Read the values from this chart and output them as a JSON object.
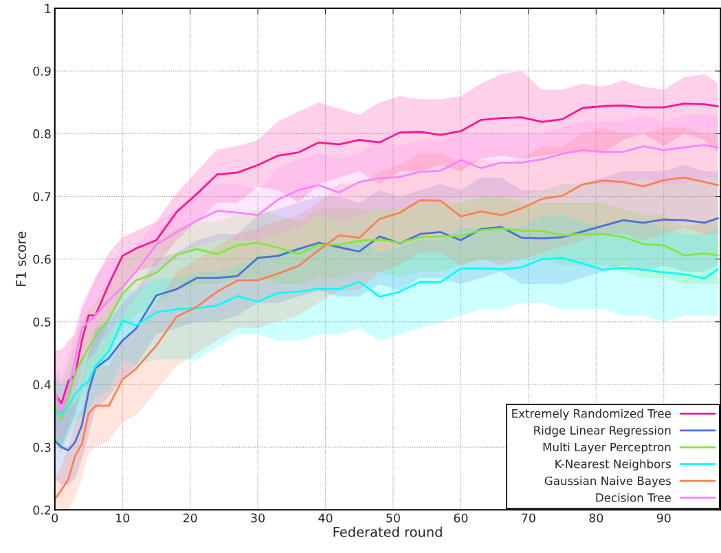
{
  "chart_data": {
    "type": "line",
    "xlabel": "Federated round",
    "ylabel": "F1 score",
    "x": [
      0,
      1,
      2,
      3,
      4,
      5,
      6,
      8,
      10,
      12,
      15,
      18,
      21,
      24,
      27,
      30,
      33,
      36,
      39,
      42,
      45,
      48,
      51,
      54,
      57,
      60,
      63,
      66,
      69,
      72,
      75,
      78,
      81,
      84,
      87,
      90,
      93,
      96,
      98
    ],
    "xlim": [
      0,
      98.4
    ],
    "ylim": [
      0.2,
      1
    ],
    "xticks": [
      0,
      10,
      20,
      30,
      40,
      50,
      60,
      70,
      80,
      90
    ],
    "yticks": [
      0.2,
      0.3,
      0.4,
      0.5,
      0.6,
      0.7,
      0.8,
      0.9,
      1
    ],
    "grid": true,
    "legend": "bottom right",
    "line_style": "solid",
    "marker": "none",
    "series": [
      {
        "name": "Extremely Randomized Tree",
        "color": "#ff1493",
        "values": [
          0.385,
          0.37,
          0.405,
          0.415,
          0.47,
          0.51,
          0.51,
          0.56,
          0.605,
          0.617,
          0.63,
          0.675,
          0.704,
          0.735,
          0.738,
          0.75,
          0.765,
          0.77,
          0.786,
          0.783,
          0.79,
          0.786,
          0.802,
          0.803,
          0.798,
          0.804,
          0.822,
          0.825,
          0.826,
          0.819,
          0.823,
          0.841,
          0.844,
          0.845,
          0.842,
          0.842,
          0.848,
          0.847,
          0.844
        ],
        "lower": [
          0.31,
          0.3,
          0.33,
          0.35,
          0.4,
          0.44,
          0.45,
          0.5,
          0.55,
          0.58,
          0.59,
          0.63,
          0.66,
          0.69,
          0.69,
          0.715,
          0.71,
          0.69,
          0.72,
          0.73,
          0.74,
          0.72,
          0.74,
          0.74,
          0.75,
          0.74,
          0.76,
          0.765,
          0.76,
          0.765,
          0.77,
          0.77,
          0.77,
          0.79,
          0.8,
          0.78,
          0.8,
          0.79,
          0.77
        ],
        "upper": [
          0.455,
          0.455,
          0.47,
          0.48,
          0.52,
          0.545,
          0.57,
          0.61,
          0.635,
          0.645,
          0.66,
          0.705,
          0.74,
          0.775,
          0.78,
          0.79,
          0.82,
          0.835,
          0.85,
          0.84,
          0.83,
          0.85,
          0.86,
          0.855,
          0.855,
          0.86,
          0.88,
          0.895,
          0.9,
          0.87,
          0.87,
          0.88,
          0.875,
          0.885,
          0.875,
          0.87,
          0.89,
          0.895,
          0.88
        ]
      },
      {
        "name": "Ridge Linear Regression",
        "color": "#4a6fd8",
        "values": [
          0.31,
          0.3,
          0.295,
          0.308,
          0.335,
          0.389,
          0.426,
          0.442,
          0.47,
          0.489,
          0.542,
          0.552,
          0.57,
          0.57,
          0.573,
          0.602,
          0.605,
          0.616,
          0.626,
          0.619,
          0.612,
          0.636,
          0.625,
          0.64,
          0.643,
          0.63,
          0.648,
          0.651,
          0.634,
          0.633,
          0.635,
          0.644,
          0.653,
          0.662,
          0.658,
          0.663,
          0.662,
          0.658,
          0.665
        ],
        "lower": [
          0.25,
          0.24,
          0.24,
          0.25,
          0.28,
          0.32,
          0.36,
          0.38,
          0.41,
          0.43,
          0.48,
          0.49,
          0.5,
          0.5,
          0.51,
          0.53,
          0.53,
          0.54,
          0.55,
          0.54,
          0.54,
          0.56,
          0.55,
          0.57,
          0.57,
          0.56,
          0.57,
          0.58,
          0.56,
          0.56,
          0.56,
          0.57,
          0.58,
          0.59,
          0.58,
          0.59,
          0.58,
          0.58,
          0.59
        ],
        "upper": [
          0.38,
          0.37,
          0.36,
          0.37,
          0.4,
          0.45,
          0.49,
          0.5,
          0.53,
          0.55,
          0.6,
          0.61,
          0.63,
          0.64,
          0.64,
          0.67,
          0.68,
          0.69,
          0.7,
          0.7,
          0.69,
          0.71,
          0.7,
          0.71,
          0.72,
          0.71,
          0.73,
          0.73,
          0.71,
          0.71,
          0.72,
          0.72,
          0.73,
          0.74,
          0.74,
          0.74,
          0.75,
          0.74,
          0.74
        ]
      },
      {
        "name": "Multi Layer Perceptron",
        "color": "#7fe83a",
        "values": [
          0.365,
          0.345,
          0.377,
          0.417,
          0.44,
          0.458,
          0.478,
          0.505,
          0.545,
          0.566,
          0.578,
          0.607,
          0.616,
          0.608,
          0.622,
          0.626,
          0.618,
          0.608,
          0.623,
          0.623,
          0.629,
          0.631,
          0.626,
          0.635,
          0.636,
          0.637,
          0.646,
          0.649,
          0.645,
          0.645,
          0.638,
          0.64,
          0.64,
          0.635,
          0.624,
          0.622,
          0.606,
          0.609,
          0.606
        ],
        "lower": [
          0.31,
          0.29,
          0.32,
          0.36,
          0.38,
          0.4,
          0.42,
          0.45,
          0.49,
          0.51,
          0.53,
          0.55,
          0.56,
          0.56,
          0.57,
          0.57,
          0.56,
          0.56,
          0.57,
          0.57,
          0.58,
          0.58,
          0.57,
          0.58,
          0.58,
          0.59,
          0.6,
          0.6,
          0.6,
          0.6,
          0.59,
          0.59,
          0.59,
          0.58,
          0.57,
          0.57,
          0.56,
          0.56,
          0.56
        ],
        "upper": [
          0.42,
          0.4,
          0.43,
          0.47,
          0.5,
          0.52,
          0.53,
          0.56,
          0.6,
          0.62,
          0.63,
          0.65,
          0.66,
          0.66,
          0.67,
          0.68,
          0.67,
          0.66,
          0.68,
          0.68,
          0.68,
          0.68,
          0.68,
          0.69,
          0.69,
          0.69,
          0.7,
          0.7,
          0.69,
          0.69,
          0.69,
          0.69,
          0.69,
          0.68,
          0.67,
          0.67,
          0.65,
          0.66,
          0.66
        ]
      },
      {
        "name": "K-Nearest Neighbors",
        "color": "#00ffff",
        "values": [
          0.358,
          0.353,
          0.365,
          0.385,
          0.397,
          0.405,
          0.429,
          0.453,
          0.502,
          0.494,
          0.515,
          0.52,
          0.522,
          0.526,
          0.541,
          0.532,
          0.546,
          0.548,
          0.553,
          0.552,
          0.564,
          0.54,
          0.548,
          0.564,
          0.563,
          0.585,
          0.585,
          0.584,
          0.587,
          0.6,
          0.602,
          0.593,
          0.583,
          0.586,
          0.583,
          0.579,
          0.576,
          0.569,
          0.584
        ],
        "lower": [
          0.31,
          0.3,
          0.32,
          0.34,
          0.35,
          0.36,
          0.38,
          0.39,
          0.44,
          0.43,
          0.44,
          0.44,
          0.44,
          0.46,
          0.48,
          0.48,
          0.47,
          0.47,
          0.48,
          0.48,
          0.49,
          0.47,
          0.48,
          0.49,
          0.5,
          0.51,
          0.52,
          0.52,
          0.53,
          0.53,
          0.52,
          0.52,
          0.52,
          0.51,
          0.51,
          0.5,
          0.51,
          0.51,
          0.51
        ],
        "upper": [
          0.41,
          0.4,
          0.41,
          0.43,
          0.44,
          0.45,
          0.48,
          0.51,
          0.55,
          0.55,
          0.57,
          0.57,
          0.58,
          0.58,
          0.59,
          0.6,
          0.61,
          0.62,
          0.62,
          0.62,
          0.63,
          0.61,
          0.62,
          0.63,
          0.63,
          0.65,
          0.65,
          0.65,
          0.65,
          0.67,
          0.67,
          0.66,
          0.65,
          0.66,
          0.66,
          0.65,
          0.64,
          0.64,
          0.65
        ]
      },
      {
        "name": "Gaussian Naive Bayes",
        "color": "#ff7f50",
        "values": [
          0.217,
          0.232,
          0.249,
          0.286,
          0.305,
          0.354,
          0.366,
          0.366,
          0.408,
          0.425,
          0.462,
          0.508,
          0.524,
          0.548,
          0.566,
          0.566,
          0.577,
          0.589,
          0.614,
          0.638,
          0.634,
          0.664,
          0.674,
          0.694,
          0.693,
          0.668,
          0.676,
          0.67,
          0.681,
          0.696,
          0.701,
          0.719,
          0.725,
          0.723,
          0.716,
          0.726,
          0.73,
          0.723,
          0.718
        ],
        "lower": [
          0.2,
          0.2,
          0.2,
          0.22,
          0.25,
          0.29,
          0.3,
          0.31,
          0.34,
          0.35,
          0.39,
          0.43,
          0.45,
          0.47,
          0.49,
          0.49,
          0.5,
          0.51,
          0.53,
          0.55,
          0.55,
          0.58,
          0.59,
          0.61,
          0.61,
          0.59,
          0.6,
          0.59,
          0.6,
          0.61,
          0.62,
          0.63,
          0.64,
          0.64,
          0.63,
          0.64,
          0.65,
          0.64,
          0.64
        ],
        "upper": [
          0.25,
          0.27,
          0.3,
          0.34,
          0.36,
          0.41,
          0.43,
          0.43,
          0.47,
          0.49,
          0.53,
          0.58,
          0.6,
          0.62,
          0.64,
          0.65,
          0.66,
          0.67,
          0.69,
          0.72,
          0.72,
          0.74,
          0.75,
          0.77,
          0.77,
          0.75,
          0.76,
          0.75,
          0.76,
          0.78,
          0.78,
          0.8,
          0.81,
          0.8,
          0.8,
          0.81,
          0.81,
          0.8,
          0.8
        ]
      },
      {
        "name": "Decision Tree",
        "color": "#ff80ff",
        "values": [
          0.39,
          0.355,
          0.39,
          0.44,
          0.49,
          0.5,
          0.51,
          0.535,
          0.555,
          0.58,
          0.623,
          0.643,
          0.661,
          0.677,
          0.674,
          0.67,
          0.695,
          0.71,
          0.718,
          0.706,
          0.723,
          0.729,
          0.731,
          0.739,
          0.741,
          0.758,
          0.745,
          0.754,
          0.754,
          0.759,
          0.768,
          0.774,
          0.771,
          0.771,
          0.78,
          0.774,
          0.778,
          0.782,
          0.778
        ],
        "lower": [
          0.33,
          0.31,
          0.33,
          0.38,
          0.43,
          0.45,
          0.46,
          0.48,
          0.51,
          0.54,
          0.58,
          0.6,
          0.62,
          0.63,
          0.63,
          0.63,
          0.64,
          0.65,
          0.67,
          0.66,
          0.67,
          0.68,
          0.68,
          0.69,
          0.69,
          0.7,
          0.7,
          0.7,
          0.7,
          0.71,
          0.72,
          0.72,
          0.72,
          0.72,
          0.73,
          0.72,
          0.72,
          0.73,
          0.73
        ],
        "upper": [
          0.44,
          0.41,
          0.44,
          0.49,
          0.53,
          0.55,
          0.57,
          0.6,
          0.6,
          0.62,
          0.66,
          0.68,
          0.7,
          0.72,
          0.72,
          0.71,
          0.745,
          0.76,
          0.77,
          0.76,
          0.77,
          0.79,
          0.78,
          0.79,
          0.79,
          0.8,
          0.8,
          0.8,
          0.8,
          0.8,
          0.81,
          0.82,
          0.82,
          0.82,
          0.83,
          0.82,
          0.83,
          0.83,
          0.83
        ]
      }
    ]
  }
}
